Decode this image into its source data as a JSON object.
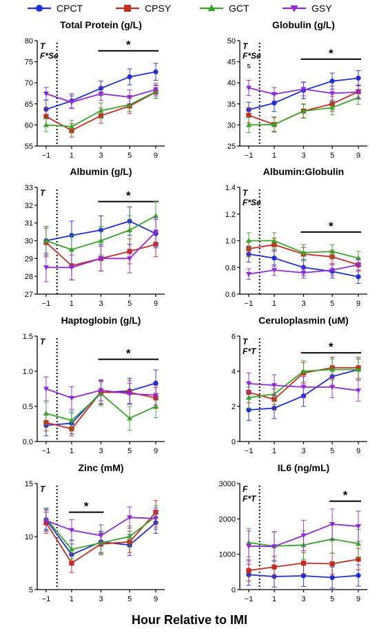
{
  "legend": {
    "placement": "top",
    "items": [
      {
        "name": "CPCT",
        "color": "#1f2fd8",
        "marker": "circle"
      },
      {
        "name": "CPSY",
        "color": "#c62c20",
        "marker": "square"
      },
      {
        "name": "GCT",
        "color": "#3aa32a",
        "marker": "triangle-up"
      },
      {
        "name": "GSY",
        "color": "#8f2bd6",
        "marker": "triangle-down"
      }
    ]
  },
  "xlabel": "Hour Relative to IMI",
  "chart_data": [
    {
      "type": "line",
      "title": "Total Protein (g/L)",
      "stats": [
        "T",
        "F*Se"
      ],
      "x": [
        -1,
        1,
        3,
        5,
        9
      ],
      "x_ticks": [
        "−1",
        "1",
        "3",
        "5",
        "9"
      ],
      "ylim": [
        55,
        80
      ],
      "y_ticks": [
        55,
        60,
        65,
        70,
        75,
        80
      ],
      "grid": false,
      "star_bar": {
        "from": 3,
        "to": 9,
        "y": 77.6,
        "label": "*"
      },
      "extra_labels": [],
      "series": [
        {
          "name": "CPCT",
          "values": [
            63.7,
            65.7,
            68.7,
            71.4,
            72.6
          ],
          "err": [
            2.2,
            1.7,
            1.7,
            1.9,
            2.0
          ]
        },
        {
          "name": "CPSY",
          "values": [
            62.0,
            58.7,
            62.2,
            64.5,
            67.8
          ],
          "err": [
            2.2,
            1.6,
            1.8,
            1.8,
            1.5
          ]
        },
        {
          "name": "GCT",
          "values": [
            60.0,
            59.6,
            63.4,
            64.8,
            67.9
          ],
          "err": [
            1.6,
            1.5,
            1.8,
            1.6,
            1.6
          ]
        },
        {
          "name": "GSY",
          "values": [
            67.4,
            65.4,
            67.4,
            66.6,
            68.4
          ],
          "err": [
            1.5,
            1.5,
            1.6,
            1.7,
            1.5
          ]
        }
      ]
    },
    {
      "type": "line",
      "title": "Globulin (g/L)",
      "stats": [
        "T",
        "F*Se"
      ],
      "x": [
        -1,
        1,
        3,
        5,
        9
      ],
      "x_ticks": [
        "−1",
        "1",
        "3",
        "5",
        "9"
      ],
      "ylim": [
        25,
        50
      ],
      "y_ticks": [
        25,
        30,
        35,
        40,
        45,
        50
      ],
      "grid": false,
      "star_bar": {
        "from": 3,
        "to": 9,
        "y": 45.6,
        "label": "*"
      },
      "extra_labels": [
        {
          "x": -1,
          "y": 43.5,
          "text": "s"
        }
      ],
      "series": [
        {
          "name": "CPCT",
          "values": [
            33.6,
            35.2,
            38.2,
            40.4,
            41.1
          ],
          "err": [
            1.8,
            2.0,
            2.0,
            1.9,
            1.8
          ]
        },
        {
          "name": "CPSY",
          "values": [
            32.3,
            30.1,
            33.3,
            35.0,
            37.9
          ],
          "err": [
            1.8,
            1.8,
            1.6,
            1.8,
            1.6
          ]
        },
        {
          "name": "GCT",
          "values": [
            30.0,
            30.1,
            33.3,
            34.1,
            36.5
          ],
          "err": [
            1.8,
            1.6,
            1.7,
            1.7,
            1.6
          ]
        },
        {
          "name": "GSY",
          "values": [
            38.8,
            37.3,
            38.5,
            37.5,
            37.8
          ],
          "err": [
            1.8,
            1.6,
            1.6,
            1.7,
            1.6
          ]
        }
      ]
    },
    {
      "type": "line",
      "title": "Albumin (g/L)",
      "stats": [
        "T"
      ],
      "x": [
        -1,
        1,
        3,
        5,
        9
      ],
      "x_ticks": [
        "−1",
        "1",
        "3",
        "5",
        "9"
      ],
      "ylim": [
        27,
        33
      ],
      "y_ticks": [
        27,
        28,
        29,
        30,
        31,
        32,
        33
      ],
      "grid": false,
      "star_bar": {
        "from": 3,
        "to": 9,
        "y": 32.2,
        "label": "*"
      },
      "extra_labels": [],
      "series": [
        {
          "name": "CPCT",
          "values": [
            30.0,
            30.3,
            30.6,
            31.1,
            30.4
          ],
          "err": [
            0.8,
            0.8,
            0.8,
            0.8,
            0.8
          ]
        },
        {
          "name": "CPSY",
          "values": [
            29.9,
            28.6,
            29.0,
            29.4,
            29.8
          ],
          "err": [
            0.8,
            0.8,
            0.7,
            0.7,
            0.7
          ]
        },
        {
          "name": "GCT",
          "values": [
            30.0,
            29.5,
            30.0,
            30.6,
            31.4
          ],
          "err": [
            0.8,
            0.8,
            0.8,
            0.8,
            0.8
          ]
        },
        {
          "name": "GSY",
          "values": [
            28.5,
            28.5,
            29.0,
            29.0,
            30.5
          ],
          "err": [
            0.8,
            0.7,
            0.7,
            0.8,
            0.8
          ]
        }
      ]
    },
    {
      "type": "line",
      "title": "Albumin:Globulin",
      "stats": [
        "T",
        "F*Se"
      ],
      "x": [
        -1,
        1,
        3,
        5,
        9
      ],
      "x_ticks": [
        "−1",
        "1",
        "3",
        "5",
        "9"
      ],
      "ylim": [
        0.6,
        1.4
      ],
      "y_ticks": [
        0.6,
        0.8,
        1.0,
        1.2,
        1.4
      ],
      "grid": false,
      "star_bar": {
        "from": 3,
        "to": 9,
        "y": 1.065,
        "label": "*"
      },
      "extra_labels": [],
      "series": [
        {
          "name": "CPCT",
          "values": [
            0.9,
            0.87,
            0.8,
            0.77,
            0.73
          ],
          "err": [
            0.06,
            0.06,
            0.06,
            0.05,
            0.05
          ]
        },
        {
          "name": "CPSY",
          "values": [
            0.94,
            0.97,
            0.9,
            0.88,
            0.82
          ],
          "err": [
            0.06,
            0.05,
            0.05,
            0.05,
            0.05
          ]
        },
        {
          "name": "GCT",
          "values": [
            1.0,
            1.0,
            0.91,
            0.92,
            0.87
          ],
          "err": [
            0.06,
            0.06,
            0.06,
            0.05,
            0.05
          ]
        },
        {
          "name": "GSY",
          "values": [
            0.75,
            0.78,
            0.76,
            0.78,
            0.82
          ],
          "err": [
            0.04,
            0.04,
            0.04,
            0.04,
            0.04
          ]
        }
      ]
    },
    {
      "type": "line",
      "title": "Haptoglobin (g/L)",
      "stats": [
        "T"
      ],
      "x": [
        -1,
        1,
        3,
        5,
        9
      ],
      "x_ticks": [
        "−1",
        "1",
        "3",
        "5",
        "9"
      ],
      "ylim": [
        0.0,
        1.5
      ],
      "y_ticks": [
        0.0,
        0.5,
        1.0,
        1.5
      ],
      "grid": false,
      "star_bar": {
        "from": 3,
        "to": 9,
        "y": 1.17,
        "label": "*"
      },
      "extra_labels": [],
      "series": [
        {
          "name": "CPCT",
          "values": [
            0.23,
            0.26,
            0.7,
            0.72,
            0.83
          ],
          "err": [
            0.15,
            0.15,
            0.17,
            0.18,
            0.19
          ]
        },
        {
          "name": "CPSY",
          "values": [
            0.27,
            0.18,
            0.7,
            0.7,
            0.62
          ],
          "err": [
            0.12,
            0.1,
            0.16,
            0.17,
            0.15
          ]
        },
        {
          "name": "GCT",
          "values": [
            0.4,
            0.3,
            0.68,
            0.33,
            0.5
          ],
          "err": [
            0.16,
            0.14,
            0.17,
            0.17,
            0.16
          ]
        },
        {
          "name": "GSY",
          "values": [
            0.75,
            0.62,
            0.73,
            0.68,
            0.66
          ],
          "err": [
            0.17,
            0.16,
            0.15,
            0.15,
            0.14
          ]
        }
      ]
    },
    {
      "type": "line",
      "title": "Ceruloplasmin (uM)",
      "stats": [
        "T",
        "F*T"
      ],
      "x": [
        -1,
        1,
        3,
        5,
        9
      ],
      "x_ticks": [
        "−1",
        "1",
        "3",
        "5",
        "9"
      ],
      "ylim": [
        0,
        6
      ],
      "y_ticks": [
        0,
        2,
        4,
        6
      ],
      "grid": false,
      "star_bar": {
        "from": 3,
        "to": 9,
        "y": 5.05,
        "label": "*"
      },
      "extra_labels": [],
      "series": [
        {
          "name": "CPCT",
          "values": [
            1.8,
            1.9,
            2.6,
            3.7,
            4.1
          ],
          "err": [
            0.6,
            0.6,
            0.6,
            0.6,
            0.6
          ]
        },
        {
          "name": "CPSY",
          "values": [
            2.8,
            2.4,
            3.9,
            4.2,
            4.2
          ],
          "err": [
            0.6,
            0.6,
            0.6,
            0.6,
            0.6
          ]
        },
        {
          "name": "GCT",
          "values": [
            2.5,
            2.7,
            4.0,
            4.1,
            4.1
          ],
          "err": [
            0.6,
            0.6,
            0.6,
            0.6,
            0.6
          ]
        },
        {
          "name": "GSY",
          "values": [
            3.3,
            3.2,
            3.1,
            3.1,
            2.9
          ],
          "err": [
            0.6,
            0.6,
            0.6,
            0.6,
            0.6
          ]
        }
      ]
    },
    {
      "type": "line",
      "title": "Zinc (mM)",
      "stats": [
        "T"
      ],
      "x": [
        -1,
        1,
        3,
        5,
        9
      ],
      "x_ticks": [
        "−1",
        "1",
        "3",
        "5",
        "9"
      ],
      "ylim": [
        5,
        15
      ],
      "y_ticks": [
        5,
        10,
        15
      ],
      "grid": false,
      "star_bar": {
        "from": 1,
        "to": 3,
        "y": 12.3,
        "label": "*"
      },
      "extra_labels": [],
      "series": [
        {
          "name": "CPCT",
          "values": [
            11.6,
            8.3,
            9.5,
            9.2,
            11.3
          ],
          "err": [
            1.0,
            1.0,
            1.0,
            1.0,
            1.0
          ]
        },
        {
          "name": "CPSY",
          "values": [
            11.3,
            7.5,
            9.3,
            9.5,
            12.3
          ],
          "err": [
            1.0,
            0.9,
            1.0,
            1.0,
            1.1
          ]
        },
        {
          "name": "GCT",
          "values": [
            11.7,
            8.8,
            9.4,
            10.0,
            11.9
          ],
          "err": [
            1.0,
            0.9,
            1.0,
            1.0,
            1.0
          ]
        },
        {
          "name": "GSY",
          "values": [
            11.5,
            10.6,
            10.1,
            11.8,
            11.7
          ],
          "err": [
            1.0,
            1.0,
            1.0,
            1.0,
            1.0
          ]
        }
      ]
    },
    {
      "type": "line",
      "title": "IL6 (ng/mL)",
      "stats": [
        "F",
        "F*T"
      ],
      "x": [
        -1,
        1,
        3,
        5,
        9
      ],
      "x_ticks": [
        "−1",
        "1",
        "3",
        "5",
        "9"
      ],
      "ylim": [
        0,
        3000
      ],
      "y_ticks": [
        0,
        1000,
        2000,
        3000
      ],
      "grid": false,
      "star_bar": {
        "from": 5,
        "to": 9,
        "y": 2500,
        "label": "*"
      },
      "extra_labels": [],
      "series": [
        {
          "name": "CPCT",
          "values": [
            420,
            370,
            390,
            340,
            400
          ],
          "err": [
            300,
            300,
            300,
            300,
            300
          ]
        },
        {
          "name": "CPSY",
          "values": [
            540,
            640,
            750,
            730,
            860
          ],
          "err": [
            300,
            300,
            300,
            300,
            300
          ]
        },
        {
          "name": "GCT",
          "values": [
            1330,
            1230,
            1260,
            1430,
            1300
          ],
          "err": [
            400,
            400,
            400,
            400,
            400
          ]
        },
        {
          "name": "GSY",
          "values": [
            1230,
            1220,
            1530,
            1850,
            1790
          ],
          "err": [
            430,
            420,
            430,
            430,
            430
          ]
        }
      ]
    }
  ]
}
